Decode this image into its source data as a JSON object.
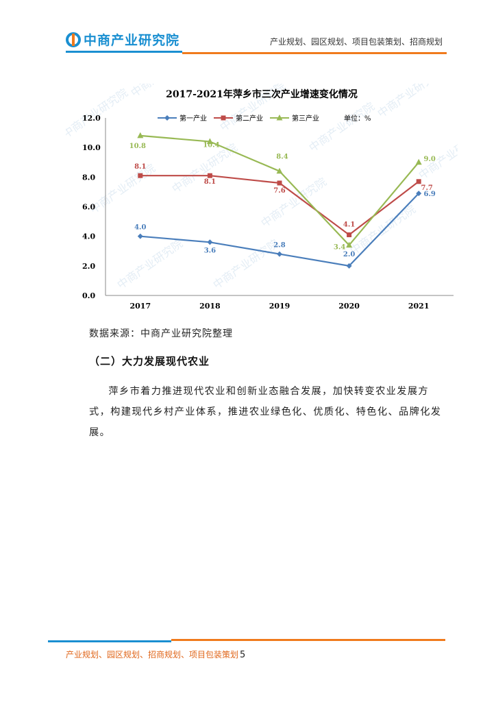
{
  "header": {
    "logo_text": "中商产业研究院",
    "tagline": "产业规划、园区规划、项目包装策划、招商规划"
  },
  "watermark": "中商产业研究院",
  "chart_data": {
    "type": "line",
    "title": "2017-2021年萍乡市三次产业增速变化情况",
    "categories": [
      "2017",
      "2018",
      "2019",
      "2020",
      "2021"
    ],
    "unit_note": "单位：%",
    "ylim": [
      0,
      12
    ],
    "yticks": [
      "0.0",
      "2.0",
      "4.0",
      "6.0",
      "8.0",
      "10.0",
      "12.0"
    ],
    "grid": false,
    "legend_position": "top",
    "series": [
      {
        "name": "第一产业",
        "values": [
          4.0,
          3.6,
          2.8,
          2.0,
          6.9
        ],
        "labels": [
          "4.0",
          "3.6",
          "2.8",
          "2.0",
          "6.9"
        ],
        "color": "#4a7ebb",
        "marker": "diamond"
      },
      {
        "name": "第二产业",
        "values": [
          8.1,
          8.1,
          7.6,
          4.1,
          7.7
        ],
        "labels": [
          "8.1",
          "8.1",
          "7.6",
          "4.1",
          "7.7"
        ],
        "color": "#be4b48",
        "marker": "square"
      },
      {
        "name": "第三产业",
        "values": [
          10.8,
          10.4,
          8.4,
          3.4,
          9.0
        ],
        "labels": [
          "10.8",
          "10.4",
          "8.4",
          "3.4",
          "9.0"
        ],
        "color": "#98b954",
        "marker": "triangle"
      }
    ]
  },
  "source_text": "数据来源：中商产业研究院整理",
  "section_heading": "（二）大力发展现代农业",
  "body_text": "萍乡市着力推进现代农业和创新业态融合发展，加快转变农业发展方式，构建现代乡村产业体系，推进农业绿色化、优质化、特色化、品牌化发展。",
  "footer": {
    "text": "产业规划、园区规划、招商规划、项目包装策划",
    "page_number": "5"
  }
}
